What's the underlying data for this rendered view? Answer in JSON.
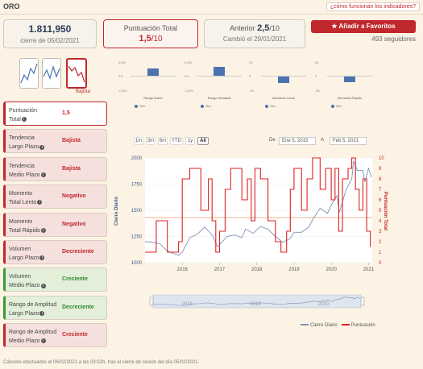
{
  "asset": "ORO",
  "help_link": "¿cómo funcionan los indicadores?",
  "price": {
    "value": "1.811,950",
    "caption": "cierre de 05/02/2021"
  },
  "score": {
    "label": "Puntuación Total",
    "value": "1,5",
    "suffix": "/10"
  },
  "previous": {
    "label": "Anterior",
    "value": "2,5",
    "suffix": "/10",
    "changed": "Cambió el 29/01/2021"
  },
  "favorite_button": "Añadir a Favoritos",
  "followers": "493 seguidores",
  "thumb_label": "Bajista",
  "mini_charts": [
    {
      "caption": "Rango Diario",
      "top": "0,8%",
      "mid": "0%",
      "bottom": "-0,8%",
      "value": 0.55,
      "legend": "Oro"
    },
    {
      "caption": "Rango Semanal",
      "top": "0,8%",
      "mid": "0%",
      "bottom": "-0,8%",
      "value": 0.7,
      "legend": "Oro"
    },
    {
      "caption": "Momento Lento",
      "top": "25",
      "mid": "0",
      "bottom": "-25",
      "value": -0.5,
      "legend": "Oro"
    },
    {
      "caption": "Momento Rápido",
      "top": "50",
      "mid": "0",
      "bottom": "-50",
      "value": -0.45,
      "legend": "Oro"
    }
  ],
  "indicators": [
    {
      "name1": "Puntuación",
      "name2": "Total",
      "value": "1,5",
      "status": "hl"
    },
    {
      "name1": "Tendencia",
      "name2": "Largo Plazo",
      "value": "Bajista",
      "status": "red"
    },
    {
      "name1": "Tendencia",
      "name2": "Medio Plazo",
      "value": "Bajista",
      "status": "red"
    },
    {
      "name1": "Momento",
      "name2": "Total Lento",
      "value": "Negativo",
      "status": "red"
    },
    {
      "name1": "Momento",
      "name2": "Total Rápido",
      "value": "Negativo",
      "status": "red"
    },
    {
      "name1": "Volumen",
      "name2": "Largo Plazo",
      "value": "Decreciente",
      "status": "red"
    },
    {
      "name1": "Volumen",
      "name2": "Medio Plazo",
      "value": "Creciente",
      "status": "grn"
    },
    {
      "name1": "Rango de Amplitud",
      "name2": "Largo Plazo",
      "value": "Decreciente",
      "status": "grn"
    },
    {
      "name1": "Rango de Amplitud",
      "name2": "Medio Plazo",
      "value": "Creciente",
      "status": "red"
    }
  ],
  "range_buttons": [
    "1m",
    "3m",
    "6m",
    "YTD",
    "1y",
    "All"
  ],
  "range_active": "All",
  "date_from_label": "De",
  "date_from": "Ene 5, 2015",
  "date_to_label": "A",
  "date_to": "Feb 5, 2021",
  "chart_data": {
    "type": "line",
    "ylabel": "Cierre Diario",
    "y2label": "Puntuación Total",
    "ylim": [
      1000,
      2000
    ],
    "y2lim": [
      0,
      10
    ],
    "yticks": [
      1000,
      1250,
      1500,
      1750,
      2000
    ],
    "y2ticks": [
      0,
      1,
      2,
      3,
      4,
      5,
      6,
      7,
      8,
      9,
      10
    ],
    "xticks": [
      "2016",
      "2017",
      "2018",
      "2019",
      "2020",
      "2021"
    ],
    "navigator_ticks": [
      "2016",
      "2018",
      "2020"
    ],
    "x_start": 2015.0,
    "x_end": 2021.1,
    "series": [
      {
        "name": "Cierre Diario",
        "color": "#7f93b5",
        "points": [
          [
            2015.0,
            1200
          ],
          [
            2015.2,
            1195
          ],
          [
            2015.4,
            1180
          ],
          [
            2015.6,
            1110
          ],
          [
            2015.9,
            1070
          ],
          [
            2016.0,
            1100
          ],
          [
            2016.2,
            1240
          ],
          [
            2016.4,
            1270
          ],
          [
            2016.6,
            1340
          ],
          [
            2016.8,
            1265
          ],
          [
            2016.95,
            1150
          ],
          [
            2017.0,
            1170
          ],
          [
            2017.2,
            1250
          ],
          [
            2017.4,
            1265
          ],
          [
            2017.6,
            1240
          ],
          [
            2017.7,
            1320
          ],
          [
            2017.9,
            1280
          ],
          [
            2018.1,
            1345
          ],
          [
            2018.3,
            1320
          ],
          [
            2018.5,
            1250
          ],
          [
            2018.7,
            1195
          ],
          [
            2018.9,
            1230
          ],
          [
            2019.0,
            1290
          ],
          [
            2019.2,
            1290
          ],
          [
            2019.4,
            1340
          ],
          [
            2019.5,
            1410
          ],
          [
            2019.7,
            1520
          ],
          [
            2019.9,
            1470
          ],
          [
            2020.0,
            1550
          ],
          [
            2020.15,
            1640
          ],
          [
            2020.22,
            1480
          ],
          [
            2020.4,
            1700
          ],
          [
            2020.55,
            1800
          ],
          [
            2020.6,
            1970
          ],
          [
            2020.7,
            1880
          ],
          [
            2020.85,
            1880
          ],
          [
            2020.9,
            1770
          ],
          [
            2021.0,
            1900
          ],
          [
            2021.08,
            1815
          ]
        ]
      },
      {
        "name": "Puntuación",
        "color": "#e02020",
        "axis": "right",
        "points": [
          [
            2015.0,
            1
          ],
          [
            2015.3,
            4
          ],
          [
            2015.6,
            1
          ],
          [
            2015.9,
            2
          ],
          [
            2016.0,
            8
          ],
          [
            2016.2,
            9
          ],
          [
            2016.5,
            5
          ],
          [
            2016.7,
            8
          ],
          [
            2016.8,
            4
          ],
          [
            2016.9,
            1
          ],
          [
            2017.0,
            3
          ],
          [
            2017.15,
            7
          ],
          [
            2017.3,
            9
          ],
          [
            2017.6,
            6
          ],
          [
            2017.75,
            8
          ],
          [
            2017.85,
            4
          ],
          [
            2017.95,
            9
          ],
          [
            2018.1,
            8
          ],
          [
            2018.3,
            4
          ],
          [
            2018.5,
            2
          ],
          [
            2018.65,
            1
          ],
          [
            2018.8,
            3
          ],
          [
            2018.9,
            7
          ],
          [
            2019.0,
            9
          ],
          [
            2019.2,
            5
          ],
          [
            2019.35,
            8
          ],
          [
            2019.5,
            10
          ],
          [
            2019.7,
            7
          ],
          [
            2019.85,
            9
          ],
          [
            2020.0,
            6
          ],
          [
            2020.1,
            9
          ],
          [
            2020.2,
            3
          ],
          [
            2020.3,
            8
          ],
          [
            2020.45,
            9
          ],
          [
            2020.55,
            10
          ],
          [
            2020.65,
            7
          ],
          [
            2020.75,
            5
          ],
          [
            2020.85,
            8
          ],
          [
            2020.95,
            3
          ],
          [
            2021.05,
            1.5
          ]
        ]
      }
    ]
  },
  "legend_price": "Cierre Diario",
  "legend_score": "Puntuación",
  "footer": "Cálculos efectuados el 06/02/2021 a las 03:02h, tras el cierre de sesión del día 05/02/2021."
}
